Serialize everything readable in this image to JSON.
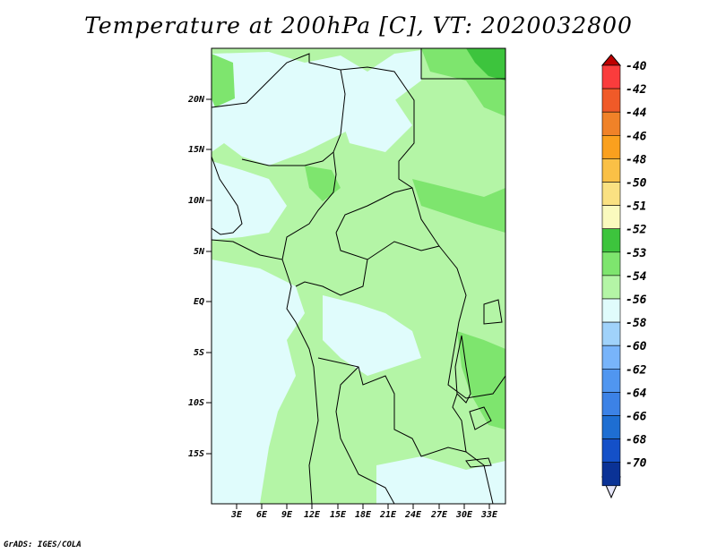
{
  "title": "Temperature at 200hPa [C], VT: 2020032800",
  "credit": "GrADS: IGES/COLA",
  "colors": {
    "cold": "#e0fcfc",
    "mid": "#b4f5a6",
    "warm": "#7ee56e",
    "warmest": "#3dc43d"
  },
  "map": {
    "lat_ticks": [
      "20N",
      "15N",
      "10N",
      "5N",
      "EQ",
      "5S",
      "10S",
      "15S"
    ],
    "lon_ticks": [
      "3E",
      "6E",
      "9E",
      "12E",
      "15E",
      "18E",
      "21E",
      "24E",
      "27E",
      "30E",
      "33E"
    ]
  },
  "colorbar": {
    "entries": [
      {
        "label": "-40",
        "color": "#fa3c3c"
      },
      {
        "label": "-42",
        "color": "#f05a28"
      },
      {
        "label": "-44",
        "color": "#f08228"
      },
      {
        "label": "-46",
        "color": "#faa01e"
      },
      {
        "label": "-48",
        "color": "#fac046"
      },
      {
        "label": "-50",
        "color": "#fae182"
      },
      {
        "label": "-51",
        "color": "#fafabe"
      },
      {
        "label": "-52",
        "color": "#3dc43d"
      },
      {
        "label": "-53",
        "color": "#7ee56e"
      },
      {
        "label": "-54",
        "color": "#b4f5a6"
      },
      {
        "label": "-56",
        "color": "#e0fcfc"
      },
      {
        "label": "-58",
        "color": "#a0d2fa"
      },
      {
        "label": "-60",
        "color": "#78b4fa"
      },
      {
        "label": "-62",
        "color": "#5096f0"
      },
      {
        "label": "-64",
        "color": "#3c82e6"
      },
      {
        "label": "-66",
        "color": "#1e6ed2"
      },
      {
        "label": "-68",
        "color": "#1450c8"
      },
      {
        "label": "-70",
        "color": "#0a3296"
      }
    ],
    "top_color": "#be0000",
    "bottom_color": "#e6e6fa"
  }
}
